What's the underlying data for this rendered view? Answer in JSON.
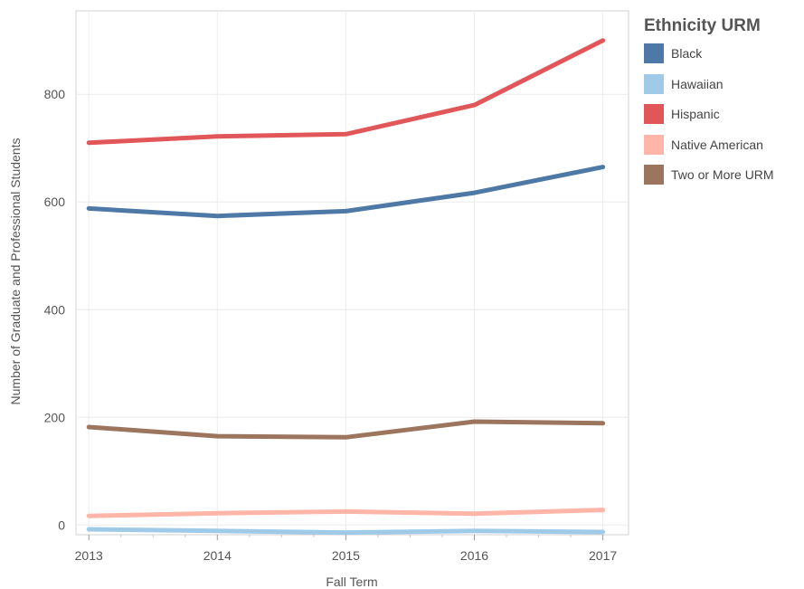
{
  "chart_data": {
    "type": "line",
    "title": "",
    "xlabel": "Fall Term",
    "ylabel": "Number of Graduate and Professional Students",
    "x": [
      2013,
      2014,
      2015,
      2016,
      2017
    ],
    "x_tick_labels": [
      "2013",
      "2014",
      "2015",
      "2016",
      "2017"
    ],
    "y_ticks": [
      0,
      200,
      400,
      600,
      800
    ],
    "y_tick_labels": [
      "0",
      "200",
      "400",
      "600",
      "800"
    ],
    "xlim": [
      2012.9,
      2017.2
    ],
    "ylim": [
      -18,
      955
    ],
    "grid": true,
    "legend_placement": "right",
    "legend_title": "Ethnicity URM",
    "series": [
      {
        "name": "Black",
        "color": "#4e79a7",
        "values": [
          588,
          574,
          583,
          617,
          665
        ]
      },
      {
        "name": "Hawaiian",
        "color": "#a0cbe8",
        "values": [
          -8,
          -11,
          -14,
          -11,
          -13
        ]
      },
      {
        "name": "Hispanic",
        "color": "#e15759",
        "values": [
          710,
          722,
          726,
          780,
          900
        ]
      },
      {
        "name": "Native American",
        "color": "#ffb5a7",
        "values": [
          17,
          22,
          25,
          21,
          28
        ]
      },
      {
        "name": "Two or More URM",
        "color": "#9c755f",
        "values": [
          182,
          165,
          163,
          192,
          189
        ]
      }
    ]
  }
}
